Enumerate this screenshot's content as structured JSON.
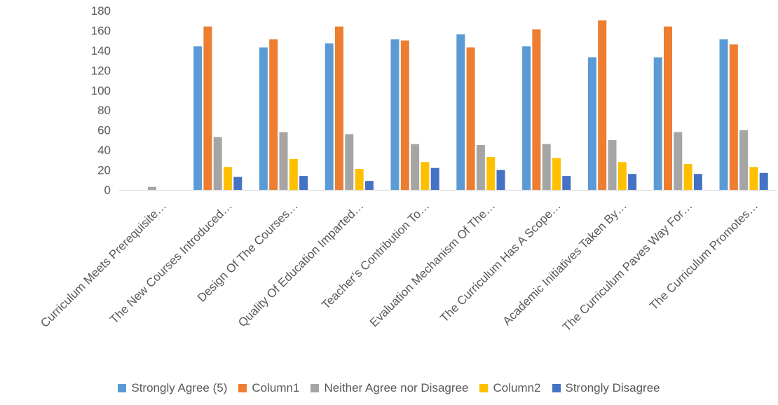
{
  "chart_data": {
    "type": "bar",
    "title": "",
    "xlabel": "",
    "ylabel": "",
    "ylim": [
      0,
      180
    ],
    "yticks": [
      0,
      20,
      40,
      60,
      80,
      100,
      120,
      140,
      160,
      180
    ],
    "grid": false,
    "legend_position": "bottom",
    "categories": [
      "Curriculum Meets Prerequisite…",
      "The New Courses Introduced…",
      "Design Of The Courses…",
      "Quality Of Education Imparted…",
      "Teacher’s Contribution To…",
      "Evaluation Mechanism Of The…",
      "The Curriculum Has A Scope…",
      "Academic Initiatives Taken By…",
      "The Curriculum Paves Way For…",
      "The Curriculum Promotes…"
    ],
    "series": [
      {
        "name": "Strongly Agree (5)",
        "color": "#5B9BD5",
        "values": [
          0,
          144,
          143,
          147,
          151,
          156,
          144,
          133,
          133,
          151
        ]
      },
      {
        "name": "Column1",
        "color": "#ED7D31",
        "values": [
          0,
          164,
          151,
          164,
          150,
          143,
          161,
          170,
          164,
          146
        ]
      },
      {
        "name": "Neither Agree nor Disagree",
        "color": "#A5A5A5",
        "values": [
          3,
          53,
          58,
          56,
          46,
          45,
          46,
          50,
          58,
          60
        ]
      },
      {
        "name": "Column2",
        "color": "#FFC000",
        "values": [
          0,
          23,
          31,
          21,
          28,
          33,
          32,
          28,
          26,
          23
        ]
      },
      {
        "name": "Strongly Disagree",
        "color": "#4472C4",
        "values": [
          0,
          13,
          14,
          9,
          22,
          20,
          14,
          16,
          16,
          17
        ]
      }
    ]
  }
}
